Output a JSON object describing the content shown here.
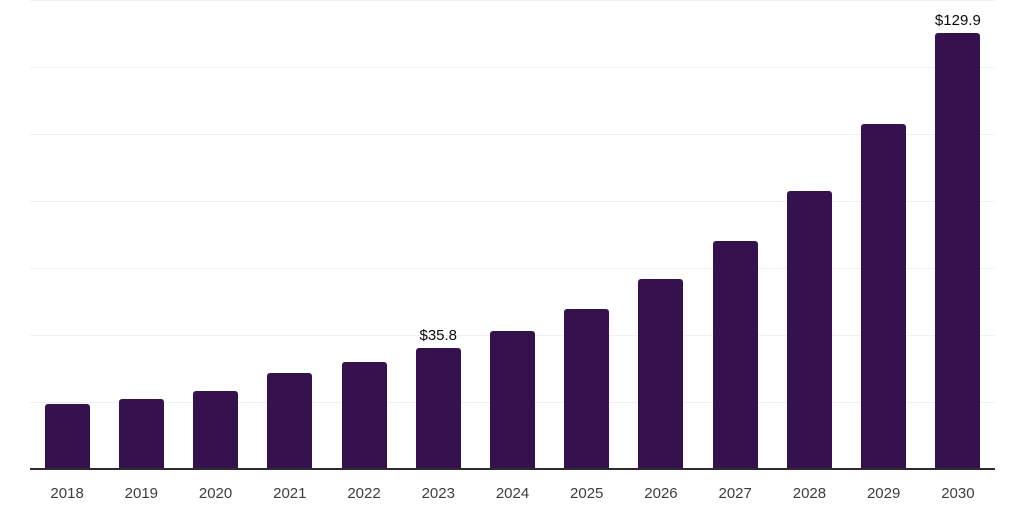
{
  "chart_data": {
    "type": "bar",
    "title": "",
    "xlabel": "",
    "ylabel": "",
    "categories": [
      "2018",
      "2019",
      "2020",
      "2021",
      "2022",
      "2023",
      "2024",
      "2025",
      "2026",
      "2027",
      "2028",
      "2029",
      "2030"
    ],
    "values": [
      19.0,
      20.7,
      22.9,
      28.3,
      31.5,
      35.8,
      41.0,
      47.4,
      56.3,
      67.9,
      82.6,
      102.7,
      129.9
    ],
    "bar_labels": {
      "2023": "$35.8",
      "2030": "$129.9"
    },
    "ylim": [
      0,
      140
    ],
    "grid_step": 20,
    "grid": true,
    "legend": "none",
    "colors": {
      "bar": "#35124e",
      "axis_line": "#2d2d2d",
      "gridline": "#f0f0f3",
      "tick_text": "#3d3d3d",
      "value_label_text": "#0a0a0a",
      "background": "#ffffff"
    }
  }
}
